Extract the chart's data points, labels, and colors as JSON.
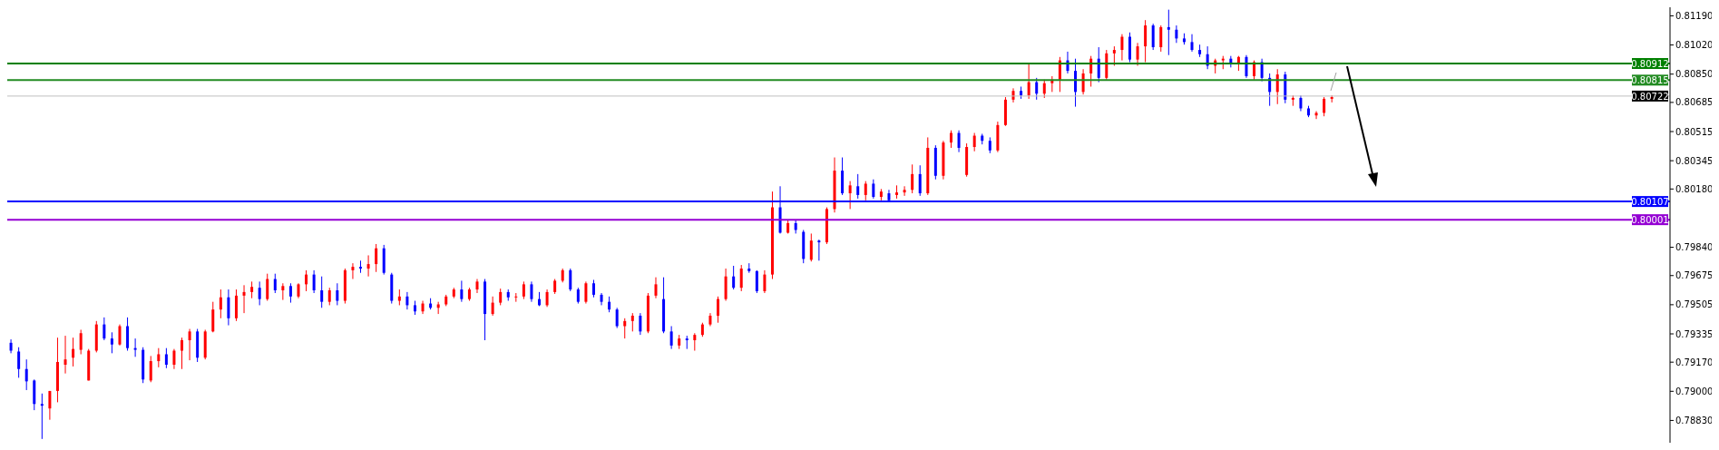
{
  "chart_data": {
    "type": "candlestick",
    "categories": [
      null,
      null,
      null,
      null,
      null,
      null,
      null,
      null,
      null,
      null,
      null,
      null,
      null,
      null,
      null,
      null,
      null,
      null,
      null,
      null,
      null,
      null,
      null,
      null,
      null,
      null,
      null,
      null,
      null,
      null,
      null,
      null,
      null,
      null,
      null,
      null,
      null,
      null,
      null,
      null,
      null,
      null,
      null,
      null,
      null,
      null,
      null,
      null,
      null,
      null,
      null,
      null,
      null,
      null,
      null,
      null,
      null,
      null,
      null,
      null,
      null,
      null,
      null,
      null,
      null,
      null,
      null,
      null,
      null,
      null,
      null,
      null,
      null,
      null,
      null,
      null,
      null,
      null,
      null,
      null,
      null,
      null,
      null,
      null,
      null,
      null,
      null,
      null,
      null,
      null,
      null,
      null,
      null,
      null,
      null,
      null,
      null,
      null,
      null,
      null,
      null,
      null,
      null,
      null,
      null,
      null,
      null,
      null,
      null,
      null,
      null,
      null,
      null,
      null,
      null,
      null,
      null,
      null,
      null,
      null,
      null,
      null,
      null,
      null,
      null,
      null,
      null,
      null,
      null,
      null,
      null,
      null,
      null,
      null,
      null,
      null,
      null,
      null,
      null,
      null,
      null,
      null,
      null,
      null,
      null,
      null,
      null,
      null,
      null,
      null,
      null,
      null,
      null,
      null,
      null,
      null,
      null,
      null,
      null,
      null,
      null,
      null,
      null,
      null,
      null,
      null,
      null,
      null,
      null,
      null,
      null,
      null,
      null,
      null,
      null,
      null,
      null,
      null,
      null,
      null,
      null,
      null,
      null,
      null,
      null,
      null,
      null,
      null,
      null,
      null,
      null,
      null,
      null,
      null,
      null,
      null,
      null,
      null,
      null,
      null,
      null,
      null,
      null,
      null,
      null,
      null,
      null,
      null,
      null,
      null,
      null,
      null,
      null,
      null
    ],
    "ohlc": [
      [
        0.79283,
        0.79303,
        0.79222,
        0.79237
      ],
      [
        0.79232,
        0.79257,
        0.79079,
        0.7913
      ],
      [
        0.7913,
        0.79186,
        0.79007,
        0.79058
      ],
      [
        0.79063,
        0.79069,
        0.7889,
        0.78926
      ],
      [
        0.78926,
        0.78987,
        0.78722,
        0.78916
      ],
      [
        0.789,
        0.79002,
        0.78834,
        0.79002
      ],
      [
        0.79002,
        0.79313,
        0.78936,
        0.79171
      ],
      [
        0.79155,
        0.79324,
        0.79104,
        0.79186
      ],
      [
        0.79196,
        0.79313,
        0.79145,
        0.79247
      ],
      [
        0.79242,
        0.79359,
        0.79216,
        0.79339
      ],
      [
        0.79063,
        0.79247,
        0.79063,
        0.79237
      ],
      [
        0.79237,
        0.7941,
        0.79227,
        0.7939
      ],
      [
        0.7939,
        0.79431,
        0.79298,
        0.79308
      ],
      [
        0.79308,
        0.79344,
        0.79222,
        0.79273
      ],
      [
        0.79273,
        0.7939,
        0.79267,
        0.7938
      ],
      [
        0.7938,
        0.79431,
        0.79237,
        0.79252
      ],
      [
        0.79252,
        0.79308,
        0.79201,
        0.79242
      ],
      [
        0.79242,
        0.79257,
        0.79048,
        0.79069
      ],
      [
        0.79063,
        0.79206,
        0.79053,
        0.79176
      ],
      [
        0.79176,
        0.79252,
        0.7914,
        0.79216
      ],
      [
        0.79216,
        0.79252,
        0.79135,
        0.79155
      ],
      [
        0.79155,
        0.79247,
        0.7913,
        0.79237
      ],
      [
        0.79237,
        0.79313,
        0.7913,
        0.79298
      ],
      [
        0.79298,
        0.79364,
        0.79181,
        0.79349
      ],
      [
        0.79349,
        0.79364,
        0.79171,
        0.79196
      ],
      [
        0.79196,
        0.79359,
        0.79186,
        0.79349
      ],
      [
        0.79349,
        0.79522,
        0.79344,
        0.79477
      ],
      [
        0.79477,
        0.79594,
        0.79426,
        0.79548
      ],
      [
        0.79548,
        0.79594,
        0.79385,
        0.79426
      ],
      [
        0.79426,
        0.79594,
        0.7941,
        0.79558
      ],
      [
        0.79558,
        0.79619,
        0.79456,
        0.79579
      ],
      [
        0.79579,
        0.7964,
        0.79543,
        0.79609
      ],
      [
        0.79604,
        0.7964,
        0.79502,
        0.79538
      ],
      [
        0.79538,
        0.79686,
        0.79528,
        0.79655
      ],
      [
        0.79655,
        0.79686,
        0.79573,
        0.79589
      ],
      [
        0.79589,
        0.7963,
        0.79533,
        0.79614
      ],
      [
        0.79614,
        0.7963,
        0.79517,
        0.79553
      ],
      [
        0.79553,
        0.7963,
        0.79543,
        0.79624
      ],
      [
        0.79624,
        0.79706,
        0.79584,
        0.79681
      ],
      [
        0.79681,
        0.79706,
        0.79573,
        0.79589
      ],
      [
        0.79589,
        0.7967,
        0.79487,
        0.79522
      ],
      [
        0.79522,
        0.79604,
        0.79502,
        0.79589
      ],
      [
        0.79589,
        0.7963,
        0.79502,
        0.79528
      ],
      [
        0.79528,
        0.79716,
        0.79512,
        0.79706
      ],
      [
        0.79706,
        0.79747,
        0.79655,
        0.79726
      ],
      [
        0.79726,
        0.79762,
        0.79691,
        0.79716
      ],
      [
        0.79716,
        0.79793,
        0.7967,
        0.79742
      ],
      [
        0.79742,
        0.79859,
        0.79696,
        0.79834
      ],
      [
        0.79834,
        0.79854,
        0.79681,
        0.79691
      ],
      [
        0.79681,
        0.79691,
        0.79512,
        0.79528
      ],
      [
        0.79528,
        0.79594,
        0.79502,
        0.79553
      ],
      [
        0.79553,
        0.79579,
        0.79477,
        0.79502
      ],
      [
        0.79502,
        0.79528,
        0.79446,
        0.79466
      ],
      [
        0.79466,
        0.79528,
        0.79451,
        0.79512
      ],
      [
        0.79512,
        0.79543,
        0.79477,
        0.79487
      ],
      [
        0.79487,
        0.79522,
        0.79451,
        0.79507
      ],
      [
        0.79507,
        0.79563,
        0.79497,
        0.79553
      ],
      [
        0.79553,
        0.79604,
        0.79543,
        0.79594
      ],
      [
        0.79594,
        0.79645,
        0.79522,
        0.79538
      ],
      [
        0.79538,
        0.79604,
        0.79528,
        0.79594
      ],
      [
        0.79594,
        0.79655,
        0.79573,
        0.7964
      ],
      [
        0.7964,
        0.79655,
        0.79298,
        0.79451
      ],
      [
        0.79451,
        0.79553,
        0.79441,
        0.79517
      ],
      [
        0.79517,
        0.79599,
        0.79502,
        0.79579
      ],
      [
        0.79579,
        0.79594,
        0.79528,
        0.79548
      ],
      [
        0.79548,
        0.79573,
        0.79522,
        0.79553
      ],
      [
        0.79553,
        0.7964,
        0.79538,
        0.79624
      ],
      [
        0.79624,
        0.7964,
        0.79522,
        0.79538
      ],
      [
        0.79538,
        0.79579,
        0.79497,
        0.79502
      ],
      [
        0.79502,
        0.79594,
        0.79492,
        0.79579
      ],
      [
        0.79579,
        0.79655,
        0.79568,
        0.79645
      ],
      [
        0.79645,
        0.79716,
        0.79635,
        0.79706
      ],
      [
        0.79706,
        0.79716,
        0.79584,
        0.79594
      ],
      [
        0.79594,
        0.79604,
        0.79512,
        0.79522
      ],
      [
        0.79522,
        0.7964,
        0.79512,
        0.7963
      ],
      [
        0.7963,
        0.7965,
        0.79548,
        0.79563
      ],
      [
        0.79563,
        0.79573,
        0.79502,
        0.79522
      ],
      [
        0.79522,
        0.79553,
        0.79461,
        0.79477
      ],
      [
        0.79477,
        0.79487,
        0.79369,
        0.7938
      ],
      [
        0.7938,
        0.79426,
        0.79308,
        0.7941
      ],
      [
        0.7941,
        0.79456,
        0.79349,
        0.79441
      ],
      [
        0.79441,
        0.79456,
        0.79329,
        0.79349
      ],
      [
        0.79349,
        0.79573,
        0.79339,
        0.79558
      ],
      [
        0.79558,
        0.79665,
        0.79543,
        0.79624
      ],
      [
        0.79538,
        0.79665,
        0.79339,
        0.79349
      ],
      [
        0.79349,
        0.7938,
        0.79247,
        0.79267
      ],
      [
        0.79267,
        0.79329,
        0.79247,
        0.79308
      ],
      [
        0.79308,
        0.79324,
        0.79247,
        0.79298
      ],
      [
        0.79298,
        0.79339,
        0.79237,
        0.79329
      ],
      [
        0.79329,
        0.794,
        0.79318,
        0.7939
      ],
      [
        0.7939,
        0.79456,
        0.7938,
        0.79441
      ],
      [
        0.79441,
        0.79553,
        0.794,
        0.79538
      ],
      [
        0.79538,
        0.79716,
        0.79528,
        0.7967
      ],
      [
        0.7967,
        0.79732,
        0.79594,
        0.79604
      ],
      [
        0.79604,
        0.79737,
        0.79584,
        0.79716
      ],
      [
        0.79716,
        0.79747,
        0.79691,
        0.79701
      ],
      [
        0.79701,
        0.79706,
        0.79573,
        0.79584
      ],
      [
        0.79584,
        0.79706,
        0.79573,
        0.79681
      ],
      [
        0.79681,
        0.80165,
        0.79655,
        0.80073
      ],
      [
        0.80073,
        0.80196,
        0.7992,
        0.79925
      ],
      [
        0.79925,
        0.79997,
        0.7992,
        0.79981
      ],
      [
        0.79981,
        0.80002,
        0.7992,
        0.79941
      ],
      [
        0.7993,
        0.79941,
        0.79747,
        0.79772
      ],
      [
        0.79767,
        0.7992,
        0.79757,
        0.79879
      ],
      [
        0.79879,
        0.79885,
        0.79762,
        0.79869
      ],
      [
        0.79869,
        0.80073,
        0.79859,
        0.80063
      ],
      [
        0.80063,
        0.80364,
        0.80043,
        0.80287
      ],
      [
        0.80287,
        0.80364,
        0.80145,
        0.80155
      ],
      [
        0.80155,
        0.80226,
        0.80063,
        0.80201
      ],
      [
        0.80196,
        0.80267,
        0.80124,
        0.80145
      ],
      [
        0.80145,
        0.80226,
        0.80114,
        0.80211
      ],
      [
        0.80211,
        0.80236,
        0.80124,
        0.80134
      ],
      [
        0.80134,
        0.8018,
        0.80114,
        0.80165
      ],
      [
        0.80155,
        0.80175,
        0.80104,
        0.80114
      ],
      [
        0.80145,
        0.80201,
        0.80124,
        0.8016
      ],
      [
        0.8016,
        0.80196,
        0.8014,
        0.80175
      ],
      [
        0.80175,
        0.80323,
        0.80155,
        0.80267
      ],
      [
        0.80267,
        0.80318,
        0.8014,
        0.80155
      ],
      [
        0.80155,
        0.80481,
        0.80145,
        0.8042
      ],
      [
        0.8042,
        0.80435,
        0.80236,
        0.80257
      ],
      [
        0.80257,
        0.80461,
        0.80236,
        0.80451
      ],
      [
        0.80451,
        0.80522,
        0.8042,
        0.80507
      ],
      [
        0.80507,
        0.80522,
        0.80395,
        0.8042
      ],
      [
        0.80262,
        0.80446,
        0.80252,
        0.80425
      ],
      [
        0.80425,
        0.80507,
        0.804,
        0.80491
      ],
      [
        0.80491,
        0.80502,
        0.8044,
        0.80461
      ],
      [
        0.80461,
        0.80481,
        0.80389,
        0.80405
      ],
      [
        0.80405,
        0.80573,
        0.80395,
        0.80553
      ],
      [
        0.80553,
        0.80716,
        0.80548,
        0.80701
      ],
      [
        0.80701,
        0.80767,
        0.80685,
        0.80752
      ],
      [
        0.80752,
        0.80777,
        0.80706,
        0.80726
      ],
      [
        0.80726,
        0.80915,
        0.80706,
        0.80803
      ],
      [
        0.80803,
        0.80828,
        0.80701,
        0.80736
      ],
      [
        0.80736,
        0.80818,
        0.80711,
        0.80797
      ],
      [
        0.80797,
        0.80838,
        0.80746,
        0.80818
      ],
      [
        0.80818,
        0.8095,
        0.80746,
        0.8093
      ],
      [
        0.8093,
        0.80981,
        0.80854,
        0.80869
      ],
      [
        0.80869,
        0.8094,
        0.8066,
        0.80746
      ],
      [
        0.80746,
        0.80879,
        0.80731,
        0.80854
      ],
      [
        0.80854,
        0.80956,
        0.80777,
        0.8094
      ],
      [
        0.8094,
        0.81007,
        0.80803,
        0.80828
      ],
      [
        0.80828,
        0.80991,
        0.80818,
        0.80971
      ],
      [
        0.80971,
        0.81012,
        0.80899,
        0.80991
      ],
      [
        0.80991,
        0.81083,
        0.8093,
        0.81068
      ],
      [
        0.81068,
        0.81093,
        0.8092,
        0.80935
      ],
      [
        0.80935,
        0.81032,
        0.80899,
        0.81012
      ],
      [
        0.81012,
        0.81165,
        0.8092,
        0.81134
      ],
      [
        0.81134,
        0.81144,
        0.80991,
        0.81007
      ],
      [
        0.81007,
        0.81134,
        0.80981,
        0.81124
      ],
      [
        0.81124,
        0.81226,
        0.80961,
        0.81109
      ],
      [
        0.81109,
        0.81134,
        0.81032,
        0.81058
      ],
      [
        0.81058,
        0.81088,
        0.81022,
        0.81037
      ],
      [
        0.81037,
        0.81083,
        0.80981,
        0.80991
      ],
      [
        0.80991,
        0.81022,
        0.8095,
        0.80966
      ],
      [
        0.80966,
        0.81012,
        0.80879,
        0.80899
      ],
      [
        0.80899,
        0.8094,
        0.80854,
        0.8093
      ],
      [
        0.8093,
        0.80956,
        0.80879,
        0.8094
      ],
      [
        0.8094,
        0.80956,
        0.80889,
        0.80915
      ],
      [
        0.80915,
        0.80956,
        0.80869,
        0.8095
      ],
      [
        0.8095,
        0.80961,
        0.80828,
        0.80838
      ],
      [
        0.80838,
        0.8093,
        0.80818,
        0.8092
      ],
      [
        0.8092,
        0.8094,
        0.80808,
        0.80828
      ],
      [
        0.80828,
        0.80854,
        0.80665,
        0.80746
      ],
      [
        0.80746,
        0.80879,
        0.80675,
        0.80848
      ],
      [
        0.80848,
        0.80864,
        0.8068,
        0.80701
      ],
      [
        0.80701,
        0.80726,
        0.80665,
        0.80711
      ],
      [
        0.80711,
        0.80726,
        0.80634,
        0.8065
      ],
      [
        0.8065,
        0.80665,
        0.80599,
        0.80609
      ],
      [
        0.80609,
        0.80634,
        0.80588,
        0.80624
      ],
      [
        0.80624,
        0.80716,
        0.80604,
        0.80706
      ],
      [
        0.80706,
        0.80726,
        0.80685,
        0.80716
      ],
      null,
      null,
      null,
      null,
      null,
      null,
      null,
      null,
      null,
      null,
      null,
      null,
      null,
      null,
      null,
      null,
      null,
      null,
      null,
      null,
      null,
      null,
      null,
      null,
      null,
      null,
      null,
      null,
      null,
      null,
      null,
      null,
      null,
      null,
      null,
      null,
      null,
      null,
      null,
      null,
      null,
      null,
      null
    ],
    "colors": [
      "#0000ff",
      "#0000ff",
      "#0000ff",
      "#0000ff",
      "#0000ff",
      "#ff0000",
      "#ff0000",
      "#ff0000",
      "#ff0000",
      "#ff0000",
      "#ff0000",
      "#ff0000",
      "#0000ff",
      "#0000ff",
      "#ff0000",
      "#0000ff",
      "#0000ff",
      "#0000ff",
      "#ff0000",
      "#ff0000",
      "#0000ff",
      "#ff0000",
      "#ff0000",
      "#ff0000",
      "#0000ff",
      "#ff0000",
      "#ff0000",
      "#ff0000",
      "#0000ff",
      "#ff0000",
      "#ff0000",
      "#ff0000",
      "#0000ff",
      "#ff0000",
      "#0000ff",
      "#ff0000",
      "#0000ff",
      "#ff0000",
      "#ff0000",
      "#0000ff",
      "#0000ff",
      "#ff0000",
      "#0000ff",
      "#ff0000",
      "#ff0000",
      "#0000ff",
      "#ff0000",
      "#ff0000",
      "#0000ff",
      "#0000ff",
      "#ff0000",
      "#0000ff",
      "#0000ff",
      "#ff0000",
      "#0000ff",
      "#ff0000",
      "#ff0000",
      "#ff0000",
      "#0000ff",
      "#ff0000",
      "#ff0000",
      "#0000ff",
      "#ff0000",
      "#ff0000",
      "#0000ff",
      "#ff0000",
      "#ff0000",
      "#0000ff",
      "#0000ff",
      "#ff0000",
      "#ff0000",
      "#ff0000",
      "#0000ff",
      "#0000ff",
      "#ff0000",
      "#0000ff",
      "#0000ff",
      "#0000ff",
      "#0000ff",
      "#ff0000",
      "#ff0000",
      "#0000ff",
      "#ff0000",
      "#ff0000",
      "#0000ff",
      "#0000ff",
      "#ff0000",
      "#0000ff",
      "#ff0000",
      "#ff0000",
      "#ff0000",
      "#ff0000",
      "#ff0000",
      "#0000ff",
      "#ff0000",
      "#0000ff",
      "#0000ff",
      "#ff0000",
      "#ff0000",
      "#0000ff",
      "#ff0000",
      "#0000ff",
      "#0000ff",
      "#ff0000",
      "#0000ff",
      "#ff0000",
      "#ff0000",
      "#0000ff",
      "#ff0000",
      "#0000ff",
      "#ff0000",
      "#0000ff",
      "#ff0000",
      "#0000ff",
      "#ff0000",
      "#ff0000",
      "#ff0000",
      "#0000ff",
      "#ff0000",
      "#0000ff",
      "#ff0000",
      "#ff0000",
      "#0000ff",
      "#ff0000",
      "#ff0000",
      "#0000ff",
      "#0000ff",
      "#ff0000",
      "#ff0000",
      "#ff0000",
      "#0000ff",
      "#ff0000",
      "#0000ff",
      "#ff0000",
      "#ff0000",
      "#ff0000",
      "#0000ff",
      "#0000ff",
      "#ff0000",
      "#ff0000",
      "#0000ff",
      "#ff0000",
      "#ff0000",
      "#ff0000",
      "#0000ff",
      "#ff0000",
      "#ff0000",
      "#0000ff",
      "#ff0000",
      "#0000ff",
      "#0000ff",
      "#0000ff",
      "#0000ff",
      "#0000ff",
      "#0000ff",
      "#ff0000",
      "#ff0000",
      "#0000ff",
      "#ff0000",
      "#0000ff",
      "#ff0000",
      "#0000ff",
      "#0000ff",
      "#ff0000",
      "#0000ff",
      "#ff0000",
      "#0000ff",
      "#0000ff",
      "#ff0000",
      "#ff0000",
      "#ff0000",
      null,
      null,
      null,
      null,
      null,
      null,
      null,
      null,
      null,
      null,
      null,
      null,
      null,
      null,
      null,
      null,
      null,
      null,
      null,
      null,
      null,
      null,
      null,
      null,
      null,
      null,
      null,
      null,
      null,
      null,
      null,
      null,
      null,
      null,
      null,
      null,
      null,
      null,
      null,
      null,
      null,
      null,
      null
    ],
    "ylim": [
      0.787,
      0.8124
    ],
    "yticks": [
      {
        "value": 0.8119,
        "label": "0.81190"
      },
      {
        "value": 0.8102,
        "label": "0.81020"
      },
      {
        "value": 0.8085,
        "label": "0.80850"
      },
      {
        "value": 0.80685,
        "label": "0.80685"
      },
      {
        "value": 0.80515,
        "label": "0.80515"
      },
      {
        "value": 0.80345,
        "label": "0.80345"
      },
      {
        "value": 0.8018,
        "label": "0.80180"
      },
      {
        "value": 0.7984,
        "label": "0.79840"
      },
      {
        "value": 0.79675,
        "label": "0.79675"
      },
      {
        "value": 0.79505,
        "label": "0.79505"
      },
      {
        "value": 0.79335,
        "label": "0.79335"
      },
      {
        "value": 0.7917,
        "label": "0.79170"
      },
      {
        "value": 0.79,
        "label": "0.79000"
      },
      {
        "value": 0.7883,
        "label": "0.78830"
      }
    ],
    "ref_lines": [
      {
        "axis": "y",
        "value": 0.80912,
        "label": "0.80912",
        "color": "#008000"
      },
      {
        "axis": "y",
        "value": 0.80815,
        "label": "0.80815",
        "color": "#228b22"
      },
      {
        "axis": "y",
        "value": 0.80722,
        "label": "0.80722",
        "color": "#c0c0c0"
      },
      {
        "axis": "y",
        "value": 0.80107,
        "label": "0.80107",
        "color": "#0000ff"
      },
      {
        "axis": "y",
        "value": 0.80001,
        "label": "0.80001",
        "color": "#9400d3"
      }
    ],
    "tick_labels": "y"
  }
}
